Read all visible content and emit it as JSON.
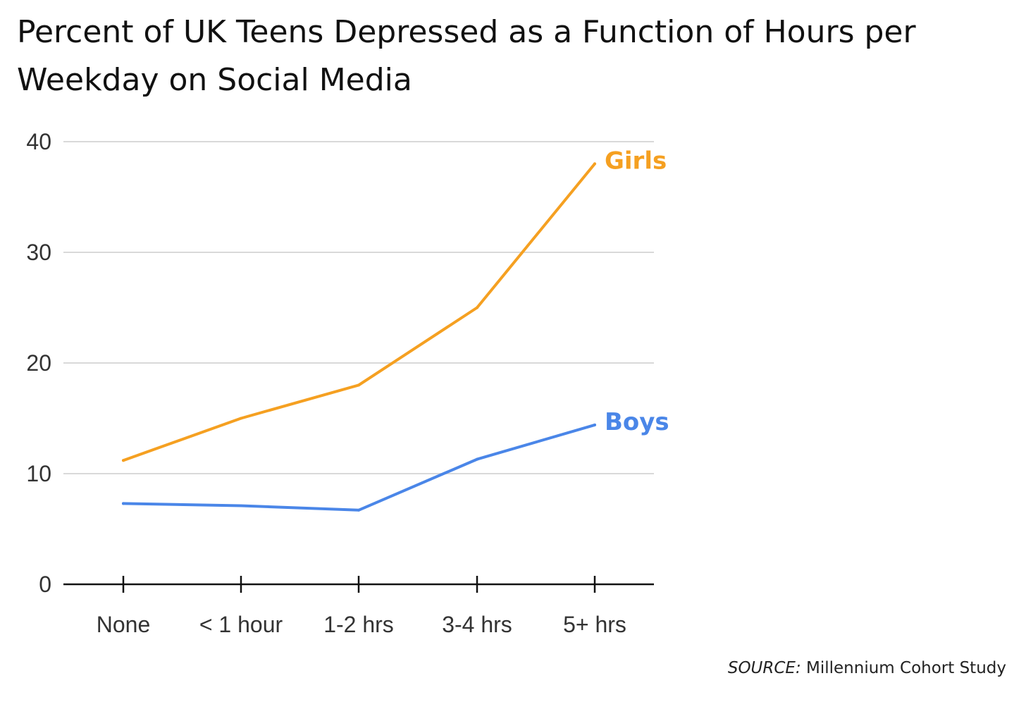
{
  "chart_data": {
    "type": "line",
    "title": [
      "Percent of UK Teens Depressed as a Function of Hours per",
      "Weekday on Social Media"
    ],
    "categories": [
      "None",
      "< 1 hour",
      "1-2 hrs",
      "3-4 hrs",
      "5+ hrs"
    ],
    "series": [
      {
        "name": "Girls",
        "color": "#f5a021",
        "values": [
          11.2,
          15.0,
          18.0,
          25.0,
          38.0
        ]
      },
      {
        "name": "Boys",
        "color": "#4a86e8",
        "values": [
          7.3,
          7.1,
          6.7,
          11.3,
          14.4
        ]
      }
    ],
    "y_ticks": [
      "0",
      "10",
      "20",
      "30",
      "40"
    ],
    "ylim": [
      0,
      40
    ],
    "grid": true,
    "source": {
      "prefix": "SOURCE:",
      "text": " Millennium Cohort Study"
    }
  }
}
